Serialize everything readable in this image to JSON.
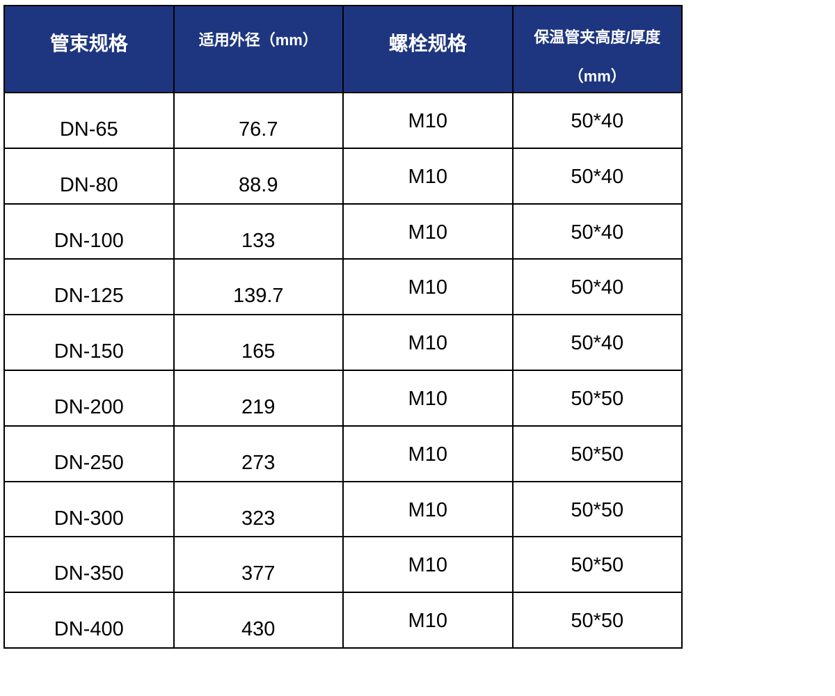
{
  "header": {
    "col1": "管束规格",
    "col2": "适用外径（mm）",
    "col3": "螺栓规格",
    "col4_line1": "保温管夹高度/厚度",
    "col4_line2": "（mm）"
  },
  "header_color": "#1e3680",
  "rows": [
    [
      "DN-65",
      "76.7",
      "M10",
      "50*40"
    ],
    [
      "DN-80",
      "88.9",
      "M10",
      "50*40"
    ],
    [
      "DN-100",
      "133",
      "M10",
      "50*40"
    ],
    [
      "DN-125",
      "139.7",
      "M10",
      "50*40"
    ],
    [
      "DN-150",
      "165",
      "M10",
      "50*40"
    ],
    [
      "DN-200",
      "219",
      "M10",
      "50*50"
    ],
    [
      "DN-250",
      "273",
      "M10",
      "50*50"
    ],
    [
      "DN-300",
      "323",
      "M10",
      "50*50"
    ],
    [
      "DN-350",
      "377",
      "M10",
      "50*50"
    ],
    [
      "DN-400",
      "430",
      "M10",
      "50*50"
    ]
  ]
}
